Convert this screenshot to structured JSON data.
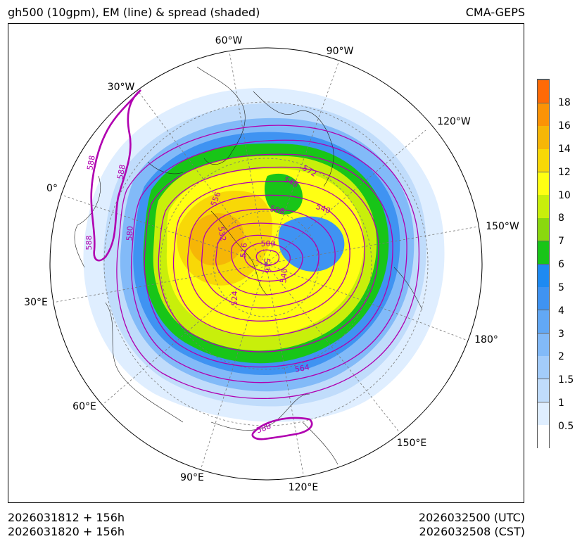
{
  "header": {
    "title_left": "gh500 (10gpm), EM (line) & spread (shaded)",
    "title_right": "CMA-GEPS"
  },
  "map": {
    "longitude_labels": [
      "60°W",
      "90°W",
      "30°W",
      "120°W",
      "0°",
      "150°W",
      "30°E",
      "180°",
      "60°E",
      "150°E",
      "90°E",
      "120°E"
    ],
    "contour_labels": [
      "588",
      "588",
      "588",
      "580",
      "556",
      "532",
      "516",
      "524",
      "572",
      "548",
      "540",
      "508",
      "500",
      "516",
      "540",
      "564",
      "588"
    ],
    "colors": {
      "em_line": "#b000b0",
      "em_line_588": "#b000b0"
    }
  },
  "colorbar": {
    "levels": [
      "0.5",
      "1",
      "1.5",
      "2",
      "3",
      "4",
      "5",
      "6",
      "7",
      "8",
      "10",
      "12",
      "14",
      "16",
      "18"
    ],
    "colors": [
      "#ffffff",
      "#dfeeff",
      "#c0dcfb",
      "#a3ccfa",
      "#82baf8",
      "#62a8f5",
      "#3f93f2",
      "#1e8af2",
      "#18c518",
      "#8ad80e",
      "#c8ef0b",
      "#ffff13",
      "#f8d807",
      "#f6b607",
      "#fb9306",
      "#ff6a06"
    ]
  },
  "footer": {
    "init_utc": "2026031812 + 156h",
    "init_cst": "2026031820 + 156h",
    "valid_utc": "2026032500 (UTC)",
    "valid_cst": "2026032508 (CST)"
  }
}
